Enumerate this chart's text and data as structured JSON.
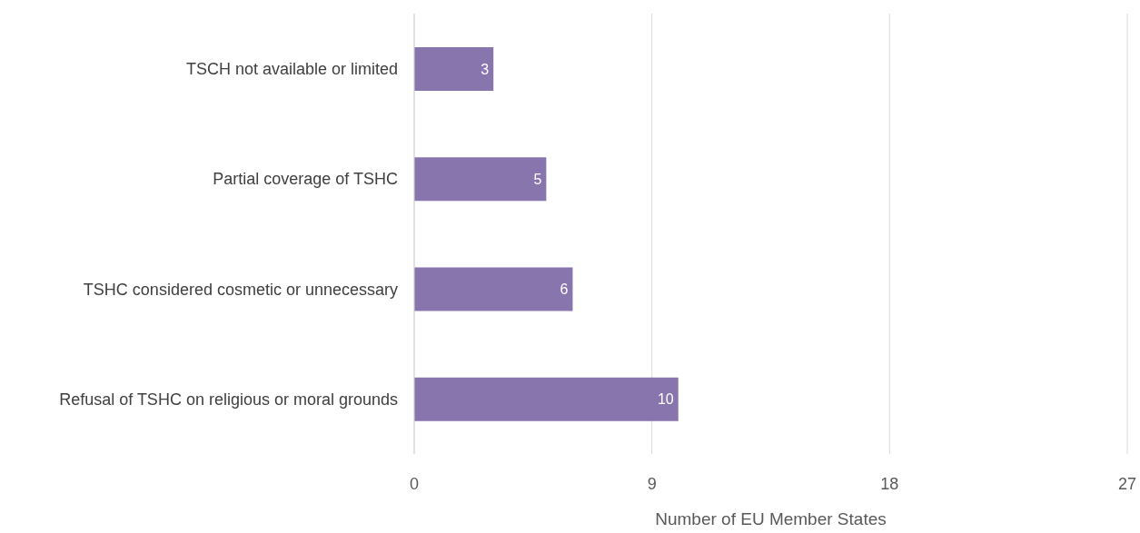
{
  "chart_data": {
    "type": "bar",
    "orientation": "horizontal",
    "categories": [
      "TSCH not available or limited",
      "Partial coverage of TSHC",
      "TSHC considered cosmetic or unnecessary",
      "Refusal of TSHC on religious or moral grounds"
    ],
    "values": [
      3,
      5,
      6,
      10
    ],
    "color": "#8875ad",
    "xlim": [
      0,
      27
    ],
    "xticks": [
      0,
      9,
      18,
      27
    ],
    "grid": "x",
    "data_labels": true,
    "xlabel": "Number of EU Member States"
  }
}
